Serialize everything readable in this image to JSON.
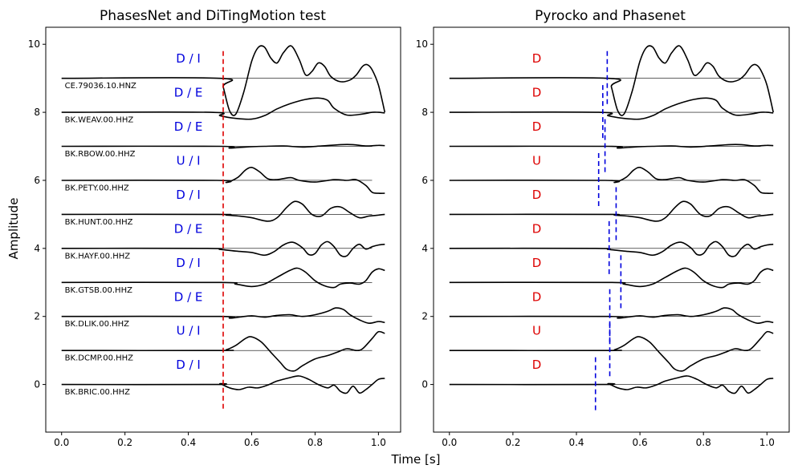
{
  "figure": {
    "xlabel": "Time [s]",
    "ylabel": "Amplitude"
  },
  "chart_data": [
    {
      "type": "line",
      "title": "PhasesNet and DiTingMotion test",
      "xlim": [
        -0.05,
        1.07
      ],
      "ylim": [
        -1.4,
        10.5
      ],
      "xticks": [
        0.0,
        0.2,
        0.4,
        0.6,
        0.8,
        1.0
      ],
      "xtick_labels": [
        "0.0",
        "0.2",
        "0.4",
        "0.6",
        "0.8",
        "1.0"
      ],
      "yticks": [
        0,
        2,
        4,
        6,
        8,
        10
      ],
      "ytick_labels": [
        "0",
        "2",
        "4",
        "6",
        "8",
        "10"
      ],
      "stations": [
        "CE.79036.10.HNZ",
        "BK.WEAV.00.HHZ",
        "BK.RBOW.00.HHZ",
        "BK.PETY.00.HHZ",
        "BK.HUNT.00.HHZ",
        "BK.HAYF.00.HHZ",
        "BK.GTSB.00.HHZ",
        "BK.DLIK.00.HHZ",
        "BK.DCMP.00.HHZ",
        "BK.BRIC.00.HHZ"
      ],
      "offsets": [
        9,
        8,
        7,
        6,
        5,
        4,
        3,
        2,
        1,
        0
      ],
      "polarity_labels": [
        "D / I",
        "D / E",
        "D / E",
        "U / I",
        "D / I",
        "D / E",
        "D / I",
        "D / E",
        "U / I",
        "D / I"
      ],
      "polarity_color": "#0000dd",
      "pick_lines": [
        {
          "x": 0.51,
          "y0": -0.8,
          "y1": 9.8
        }
      ],
      "pick_color": "#dd0000"
    },
    {
      "type": "line",
      "title": "Pyrocko and Phasenet",
      "xlim": [
        -0.05,
        1.07
      ],
      "ylim": [
        -1.4,
        10.5
      ],
      "xticks": [
        0.0,
        0.2,
        0.4,
        0.6,
        0.8,
        1.0
      ],
      "xtick_labels": [
        "0.0",
        "0.2",
        "0.4",
        "0.6",
        "0.8",
        "1.0"
      ],
      "yticks": [
        0,
        2,
        4,
        6,
        8,
        10
      ],
      "ytick_labels": [
        "0",
        "2",
        "4",
        "6",
        "8",
        "10"
      ],
      "offsets": [
        9,
        8,
        7,
        6,
        5,
        4,
        3,
        2,
        1,
        0
      ],
      "polarity_labels": [
        "D",
        "D",
        "D",
        "U",
        "D",
        "D",
        "D",
        "D",
        "U",
        "D"
      ],
      "polarity_color": "#dd0000",
      "pick_lines": [
        {
          "x": 0.497,
          "y0": 8.2,
          "y1": 9.8
        },
        {
          "x": 0.483,
          "y0": 7.2,
          "y1": 8.8
        },
        {
          "x": 0.49,
          "y0": 6.2,
          "y1": 7.8
        },
        {
          "x": 0.47,
          "y0": 5.2,
          "y1": 6.8
        },
        {
          "x": 0.525,
          "y0": 4.2,
          "y1": 5.8
        },
        {
          "x": 0.503,
          "y0": 3.2,
          "y1": 4.8
        },
        {
          "x": 0.54,
          "y0": 2.2,
          "y1": 3.8
        },
        {
          "x": 0.505,
          "y0": 1.2,
          "y1": 2.8
        },
        {
          "x": 0.505,
          "y0": 0.2,
          "y1": 1.8
        },
        {
          "x": 0.46,
          "y0": -0.8,
          "y1": 0.8
        }
      ],
      "pick_color": "#0000dd"
    }
  ],
  "traces": [
    {
      "onset": 0.5,
      "pts": [
        [
          0.5,
          0
        ],
        [
          0.51,
          -0.25
        ],
        [
          0.53,
          -0.95
        ],
        [
          0.55,
          -1.05
        ],
        [
          0.575,
          -0.4
        ],
        [
          0.6,
          0.5
        ],
        [
          0.62,
          0.9
        ],
        [
          0.64,
          0.92
        ],
        [
          0.66,
          0.6
        ],
        [
          0.68,
          0.45
        ],
        [
          0.7,
          0.75
        ],
        [
          0.725,
          0.95
        ],
        [
          0.75,
          0.55
        ],
        [
          0.77,
          0.1
        ],
        [
          0.79,
          0.2
        ],
        [
          0.81,
          0.45
        ],
        [
          0.83,
          0.35
        ],
        [
          0.85,
          0.05
        ],
        [
          0.88,
          -0.1
        ],
        [
          0.91,
          -0.05
        ],
        [
          0.93,
          0.1
        ],
        [
          0.95,
          0.35
        ],
        [
          0.965,
          0.4
        ],
        [
          0.98,
          0.25
        ],
        [
          1.0,
          -0.2
        ],
        [
          1.02,
          -1.0
        ]
      ]
    },
    {
      "onset": 0.47,
      "pts": [
        [
          0.47,
          0
        ],
        [
          0.5,
          -0.1
        ],
        [
          0.55,
          -0.18
        ],
        [
          0.6,
          -0.2
        ],
        [
          0.64,
          -0.1
        ],
        [
          0.68,
          0.1
        ],
        [
          0.72,
          0.25
        ],
        [
          0.77,
          0.38
        ],
        [
          0.81,
          0.42
        ],
        [
          0.84,
          0.35
        ],
        [
          0.86,
          0.12
        ],
        [
          0.9,
          -0.08
        ],
        [
          0.95,
          -0.05
        ],
        [
          0.98,
          0.0
        ],
        [
          1.0,
          0.0
        ],
        [
          1.02,
          -0.02
        ]
      ]
    },
    {
      "onset": 0.5,
      "pts": [
        [
          0.5,
          0
        ],
        [
          0.53,
          -0.05
        ],
        [
          0.58,
          -0.02
        ],
        [
          0.64,
          0.0
        ],
        [
          0.7,
          0.01
        ],
        [
          0.76,
          -0.02
        ],
        [
          0.82,
          0.01
        ],
        [
          0.88,
          0.05
        ],
        [
          0.92,
          0.05
        ],
        [
          0.96,
          0.01
        ],
        [
          1.0,
          0.03
        ],
        [
          1.02,
          0.02
        ]
      ]
    },
    {
      "onset": 0.49,
      "pts": [
        [
          0.49,
          0
        ],
        [
          0.52,
          -0.06
        ],
        [
          0.555,
          0.08
        ],
        [
          0.58,
          0.3
        ],
        [
          0.6,
          0.38
        ],
        [
          0.625,
          0.25
        ],
        [
          0.65,
          0.05
        ],
        [
          0.675,
          0.02
        ],
        [
          0.7,
          0.05
        ],
        [
          0.725,
          0.08
        ],
        [
          0.75,
          0.0
        ],
        [
          0.8,
          -0.05
        ],
        [
          0.86,
          0.02
        ],
        [
          0.9,
          0.0
        ],
        [
          0.93,
          0.02
        ],
        [
          0.96,
          -0.15
        ],
        [
          0.98,
          -0.35
        ],
        [
          1.0,
          -0.38
        ],
        [
          1.02,
          -0.38
        ]
      ]
    },
    {
      "onset": 0.49,
      "pts": [
        [
          0.49,
          0
        ],
        [
          0.52,
          -0.02
        ],
        [
          0.56,
          -0.05
        ],
        [
          0.6,
          -0.1
        ],
        [
          0.65,
          -0.2
        ],
        [
          0.68,
          -0.1
        ],
        [
          0.71,
          0.2
        ],
        [
          0.735,
          0.38
        ],
        [
          0.76,
          0.3
        ],
        [
          0.79,
          0.0
        ],
        [
          0.82,
          -0.05
        ],
        [
          0.85,
          0.18
        ],
        [
          0.88,
          0.22
        ],
        [
          0.91,
          0.05
        ],
        [
          0.94,
          -0.1
        ],
        [
          0.97,
          -0.05
        ],
        [
          1.0,
          -0.02
        ],
        [
          1.02,
          0.0
        ]
      ]
    },
    {
      "onset": 0.46,
      "pts": [
        [
          0.46,
          0
        ],
        [
          0.5,
          -0.03
        ],
        [
          0.55,
          -0.08
        ],
        [
          0.6,
          -0.12
        ],
        [
          0.64,
          -0.2
        ],
        [
          0.67,
          -0.1
        ],
        [
          0.7,
          0.1
        ],
        [
          0.73,
          0.18
        ],
        [
          0.76,
          0.02
        ],
        [
          0.78,
          -0.18
        ],
        [
          0.8,
          -0.15
        ],
        [
          0.82,
          0.1
        ],
        [
          0.84,
          0.2
        ],
        [
          0.86,
          0.05
        ],
        [
          0.88,
          -0.2
        ],
        [
          0.9,
          -0.22
        ],
        [
          0.92,
          0.0
        ],
        [
          0.94,
          0.12
        ],
        [
          0.96,
          -0.02
        ],
        [
          0.98,
          0.05
        ],
        [
          1.0,
          0.1
        ],
        [
          1.02,
          0.12
        ]
      ]
    },
    {
      "onset": 0.5,
      "pts": [
        [
          0.5,
          0
        ],
        [
          0.55,
          -0.05
        ],
        [
          0.6,
          -0.12
        ],
        [
          0.64,
          -0.05
        ],
        [
          0.68,
          0.15
        ],
        [
          0.72,
          0.35
        ],
        [
          0.745,
          0.42
        ],
        [
          0.77,
          0.3
        ],
        [
          0.8,
          0.05
        ],
        [
          0.83,
          -0.1
        ],
        [
          0.86,
          -0.15
        ],
        [
          0.88,
          -0.05
        ],
        [
          0.91,
          -0.02
        ],
        [
          0.94,
          -0.05
        ],
        [
          0.96,
          0.05
        ],
        [
          0.98,
          0.3
        ],
        [
          1.0,
          0.4
        ],
        [
          1.02,
          0.35
        ]
      ]
    },
    {
      "onset": 0.5,
      "pts": [
        [
          0.5,
          0
        ],
        [
          0.53,
          -0.05
        ],
        [
          0.56,
          -0.02
        ],
        [
          0.6,
          0.02
        ],
        [
          0.64,
          -0.02
        ],
        [
          0.68,
          0.03
        ],
        [
          0.72,
          0.05
        ],
        [
          0.76,
          0.0
        ],
        [
          0.8,
          0.05
        ],
        [
          0.84,
          0.15
        ],
        [
          0.865,
          0.25
        ],
        [
          0.89,
          0.2
        ],
        [
          0.91,
          0.05
        ],
        [
          0.94,
          -0.1
        ],
        [
          0.97,
          -0.2
        ],
        [
          1.0,
          -0.15
        ],
        [
          1.02,
          -0.18
        ]
      ]
    },
    {
      "onset": 0.5,
      "pts": [
        [
          0.5,
          0
        ],
        [
          0.52,
          0.02
        ],
        [
          0.55,
          0.15
        ],
        [
          0.58,
          0.35
        ],
        [
          0.6,
          0.4
        ],
        [
          0.63,
          0.25
        ],
        [
          0.66,
          -0.05
        ],
        [
          0.69,
          -0.35
        ],
        [
          0.71,
          -0.55
        ],
        [
          0.735,
          -0.6
        ],
        [
          0.76,
          -0.45
        ],
        [
          0.8,
          -0.25
        ],
        [
          0.84,
          -0.15
        ],
        [
          0.87,
          -0.05
        ],
        [
          0.9,
          0.05
        ],
        [
          0.93,
          0.0
        ],
        [
          0.95,
          0.05
        ],
        [
          0.98,
          0.35
        ],
        [
          1.0,
          0.55
        ],
        [
          1.02,
          0.5
        ]
      ]
    },
    {
      "onset": 0.48,
      "pts": [
        [
          0.48,
          0
        ],
        [
          0.5,
          0.02
        ],
        [
          0.53,
          -0.1
        ],
        [
          0.56,
          -0.15
        ],
        [
          0.59,
          -0.08
        ],
        [
          0.62,
          -0.1
        ],
        [
          0.65,
          -0.02
        ],
        [
          0.68,
          0.1
        ],
        [
          0.72,
          0.2
        ],
        [
          0.75,
          0.25
        ],
        [
          0.78,
          0.15
        ],
        [
          0.81,
          0.0
        ],
        [
          0.84,
          -0.1
        ],
        [
          0.86,
          -0.02
        ],
        [
          0.88,
          -0.2
        ],
        [
          0.9,
          -0.25
        ],
        [
          0.92,
          -0.05
        ],
        [
          0.94,
          -0.25
        ],
        [
          0.96,
          -0.15
        ],
        [
          0.98,
          0.0
        ],
        [
          1.0,
          0.15
        ],
        [
          1.02,
          0.18
        ]
      ]
    }
  ]
}
